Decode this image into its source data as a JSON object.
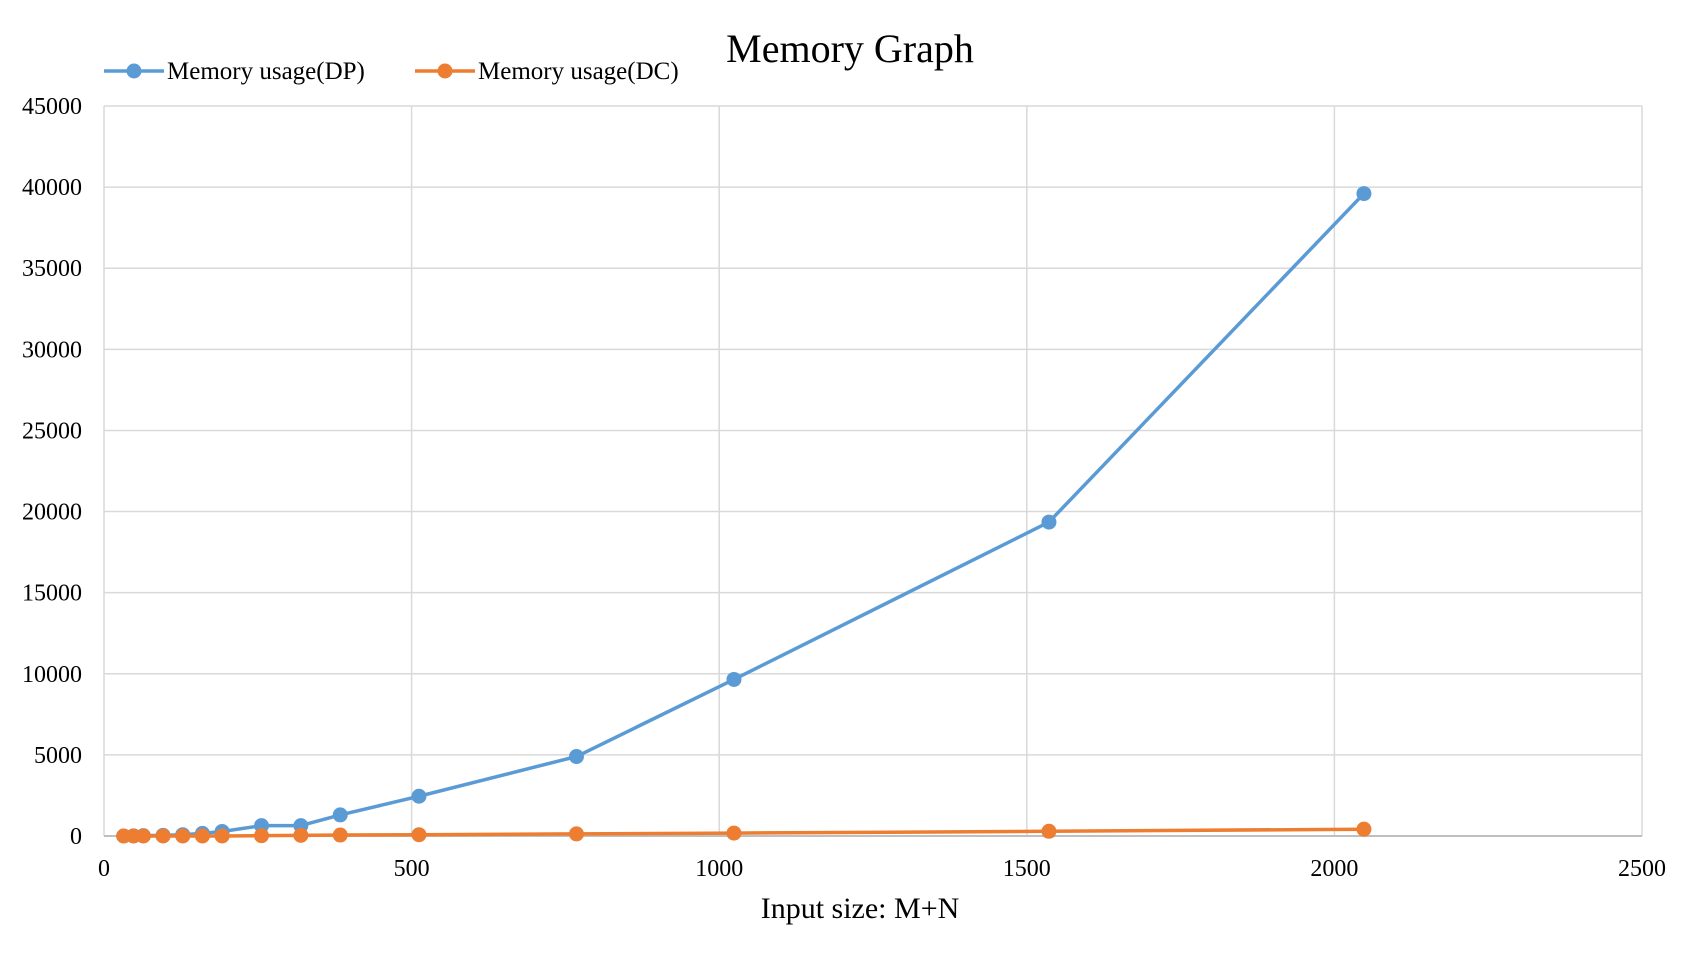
{
  "chart_data": {
    "type": "line",
    "title": "Memory Graph",
    "xlabel": "Input size: M+N",
    "ylabel": "",
    "xlim": [
      0,
      2500
    ],
    "ylim": [
      0,
      45000
    ],
    "xticks": [
      0,
      500,
      1000,
      1500,
      2000,
      2500
    ],
    "yticks": [
      0,
      5000,
      10000,
      15000,
      20000,
      25000,
      30000,
      35000,
      40000,
      45000
    ],
    "grid": true,
    "legend_position": "top-left",
    "series": [
      {
        "name": "Memory usage(DP)",
        "color": "#5B9BD5",
        "points": [
          [
            32,
            0
          ],
          [
            48,
            10
          ],
          [
            64,
            20
          ],
          [
            96,
            40
          ],
          [
            128,
            80
          ],
          [
            160,
            160
          ],
          [
            192,
            280
          ],
          [
            256,
            640
          ],
          [
            320,
            640
          ],
          [
            384,
            1300
          ],
          [
            512,
            2450
          ],
          [
            768,
            4900
          ],
          [
            1024,
            9650
          ],
          [
            1536,
            19350
          ],
          [
            2048,
            39600
          ]
        ]
      },
      {
        "name": "Memory usage(DC)",
        "color": "#ED7D31",
        "points": [
          [
            32,
            0
          ],
          [
            48,
            0
          ],
          [
            64,
            0
          ],
          [
            96,
            0
          ],
          [
            128,
            0
          ],
          [
            160,
            0
          ],
          [
            192,
            0
          ],
          [
            256,
            20
          ],
          [
            320,
            40
          ],
          [
            384,
            60
          ],
          [
            512,
            80
          ],
          [
            768,
            130
          ],
          [
            1024,
            180
          ],
          [
            1536,
            290
          ],
          [
            2048,
            420
          ]
        ]
      }
    ]
  }
}
